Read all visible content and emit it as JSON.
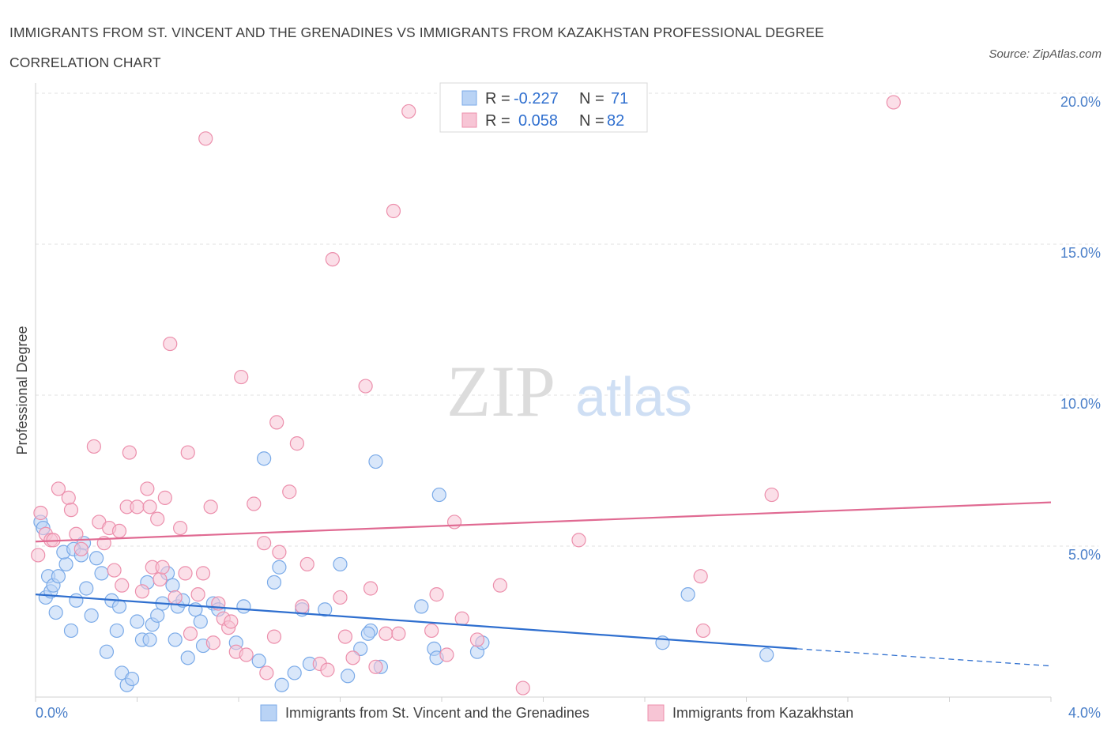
{
  "header": {
    "title": "IMMIGRANTS FROM ST. VINCENT AND THE GRENADINES VS IMMIGRANTS FROM KAZAKHSTAN PROFESSIONAL DEGREE CORRELATION CHART",
    "source": "Source: ZipAtlas.com"
  },
  "watermark": {
    "zip": "ZIP",
    "atlas": "atlas"
  },
  "legend": {
    "r_label": "R =",
    "n_label": "N =",
    "rows": [
      {
        "r": "-0.227",
        "n": "71"
      },
      {
        "r": "0.058",
        "n": "82"
      }
    ]
  },
  "chart_data": {
    "type": "scatter",
    "title": "IMMIGRANTS FROM ST. VINCENT AND THE GRENADINES VS IMMIGRANTS FROM KAZAKHSTAN PROFESSIONAL DEGREE CORRELATION CHART",
    "xlabel": "",
    "ylabel": "Professional Degree",
    "xlim": [
      0,
      4
    ],
    "ylim": [
      0,
      20
    ],
    "x_tick_labels": [
      "0.0%",
      "4.0%"
    ],
    "y_ticks": [
      {
        "value": 5,
        "label": "5.0%"
      },
      {
        "value": 10,
        "label": "10.0%"
      },
      {
        "value": 15,
        "label": "15.0%"
      },
      {
        "value": 20,
        "label": "20.0%"
      }
    ],
    "grid": true,
    "legend_position": "top-center",
    "series": [
      {
        "name": "Immigrants from St. Vincent and the Grenadines",
        "color": "#7aaae8",
        "fill": "#b9d3f5",
        "r": -0.227,
        "n": 71,
        "trend": {
          "x0": 0.0,
          "y0": 3.4,
          "x1": 3.0,
          "y1": 1.6,
          "dash_to_x": 4.0,
          "dash_to_y": 1.03
        },
        "points": [
          [
            0.02,
            5.8
          ],
          [
            0.04,
            3.3
          ],
          [
            0.05,
            4.0
          ],
          [
            0.06,
            3.5
          ],
          [
            0.08,
            2.8
          ],
          [
            0.07,
            3.7
          ],
          [
            0.12,
            4.4
          ],
          [
            0.14,
            2.2
          ],
          [
            0.16,
            3.2
          ],
          [
            0.19,
            5.1
          ],
          [
            0.22,
            2.7
          ],
          [
            0.24,
            4.6
          ],
          [
            0.26,
            4.1
          ],
          [
            0.3,
            3.2
          ],
          [
            0.32,
            2.2
          ],
          [
            0.34,
            0.8
          ],
          [
            0.36,
            0.4
          ],
          [
            0.38,
            0.6
          ],
          [
            0.42,
            1.9
          ],
          [
            0.44,
            3.8
          ],
          [
            0.46,
            2.4
          ],
          [
            0.48,
            2.7
          ],
          [
            0.5,
            3.1
          ],
          [
            0.52,
            4.1
          ],
          [
            0.54,
            3.7
          ],
          [
            0.56,
            3.0
          ],
          [
            0.58,
            3.2
          ],
          [
            0.6,
            1.3
          ],
          [
            0.63,
            2.9
          ],
          [
            0.65,
            2.5
          ],
          [
            0.7,
            3.1
          ],
          [
            0.72,
            2.9
          ],
          [
            0.79,
            1.8
          ],
          [
            0.82,
            3.0
          ],
          [
            0.88,
            1.2
          ],
          [
            0.9,
            7.9
          ],
          [
            0.94,
            3.8
          ],
          [
            0.96,
            4.3
          ],
          [
            0.97,
            0.4
          ],
          [
            1.02,
            0.8
          ],
          [
            1.08,
            1.1
          ],
          [
            1.14,
            2.9
          ],
          [
            1.2,
            4.4
          ],
          [
            1.23,
            0.7
          ],
          [
            1.28,
            1.6
          ],
          [
            1.32,
            2.2
          ],
          [
            1.34,
            7.8
          ],
          [
            1.36,
            1.0
          ],
          [
            1.52,
            3.0
          ],
          [
            1.57,
            1.6
          ],
          [
            1.58,
            1.3
          ],
          [
            1.59,
            6.7
          ],
          [
            1.74,
            1.5
          ],
          [
            1.76,
            1.8
          ],
          [
            2.47,
            1.8
          ],
          [
            2.57,
            3.4
          ],
          [
            2.88,
            1.4
          ],
          [
            0.03,
            5.6
          ],
          [
            0.11,
            4.8
          ],
          [
            0.15,
            4.9
          ],
          [
            0.2,
            3.6
          ],
          [
            0.28,
            1.5
          ],
          [
            0.33,
            3.0
          ],
          [
            0.4,
            2.5
          ],
          [
            0.45,
            1.9
          ],
          [
            0.18,
            4.7
          ],
          [
            0.09,
            4.0
          ],
          [
            0.55,
            1.9
          ],
          [
            0.66,
            1.7
          ],
          [
            1.05,
            2.9
          ],
          [
            1.31,
            2.1
          ]
        ]
      },
      {
        "name": "Immigrants from Kazakhstan",
        "color": "#ec8fac",
        "fill": "#f7c5d5",
        "r": 0.058,
        "n": 82,
        "trend": {
          "x0": 0.0,
          "y0": 5.15,
          "x1": 4.0,
          "y1": 6.45
        },
        "points": [
          [
            0.01,
            4.7
          ],
          [
            0.02,
            6.1
          ],
          [
            0.04,
            5.4
          ],
          [
            0.06,
            5.2
          ],
          [
            0.09,
            6.9
          ],
          [
            0.13,
            6.6
          ],
          [
            0.14,
            6.2
          ],
          [
            0.16,
            5.4
          ],
          [
            0.18,
            4.9
          ],
          [
            0.23,
            8.3
          ],
          [
            0.25,
            5.8
          ],
          [
            0.27,
            5.1
          ],
          [
            0.29,
            5.6
          ],
          [
            0.31,
            4.2
          ],
          [
            0.33,
            5.5
          ],
          [
            0.34,
            3.7
          ],
          [
            0.36,
            6.3
          ],
          [
            0.37,
            8.1
          ],
          [
            0.4,
            6.3
          ],
          [
            0.42,
            3.5
          ],
          [
            0.44,
            6.9
          ],
          [
            0.45,
            6.3
          ],
          [
            0.46,
            4.3
          ],
          [
            0.48,
            5.9
          ],
          [
            0.49,
            3.9
          ],
          [
            0.5,
            4.3
          ],
          [
            0.51,
            6.6
          ],
          [
            0.53,
            11.7
          ],
          [
            0.55,
            3.3
          ],
          [
            0.57,
            5.6
          ],
          [
            0.59,
            4.1
          ],
          [
            0.6,
            8.1
          ],
          [
            0.61,
            2.1
          ],
          [
            0.64,
            3.4
          ],
          [
            0.66,
            4.1
          ],
          [
            0.67,
            18.5
          ],
          [
            0.69,
            6.3
          ],
          [
            0.7,
            1.8
          ],
          [
            0.72,
            3.1
          ],
          [
            0.74,
            2.6
          ],
          [
            0.76,
            2.3
          ],
          [
            0.77,
            2.5
          ],
          [
            0.79,
            1.5
          ],
          [
            0.81,
            10.6
          ],
          [
            0.83,
            1.4
          ],
          [
            0.86,
            6.4
          ],
          [
            0.9,
            5.1
          ],
          [
            0.91,
            0.8
          ],
          [
            0.94,
            2.0
          ],
          [
            0.95,
            9.1
          ],
          [
            1.0,
            6.8
          ],
          [
            1.03,
            8.4
          ],
          [
            1.05,
            3.0
          ],
          [
            1.07,
            4.4
          ],
          [
            1.12,
            1.1
          ],
          [
            1.15,
            0.9
          ],
          [
            1.17,
            14.5
          ],
          [
            1.2,
            3.3
          ],
          [
            1.22,
            2.0
          ],
          [
            1.25,
            1.3
          ],
          [
            1.3,
            10.3
          ],
          [
            1.32,
            3.6
          ],
          [
            1.34,
            1.0
          ],
          [
            1.38,
            2.1
          ],
          [
            1.41,
            16.1
          ],
          [
            1.43,
            2.1
          ],
          [
            1.47,
            19.4
          ],
          [
            1.56,
            2.2
          ],
          [
            1.58,
            3.4
          ],
          [
            1.62,
            1.4
          ],
          [
            1.65,
            5.8
          ],
          [
            1.68,
            2.6
          ],
          [
            1.74,
            1.9
          ],
          [
            1.83,
            3.7
          ],
          [
            1.92,
            0.3
          ],
          [
            2.14,
            5.2
          ],
          [
            2.62,
            4.0
          ],
          [
            2.63,
            2.2
          ],
          [
            2.9,
            6.7
          ],
          [
            3.38,
            19.7
          ],
          [
            0.96,
            4.8
          ],
          [
            0.07,
            5.2
          ]
        ]
      }
    ]
  },
  "colors": {
    "blue_line": "#2f6fcf",
    "pink_line": "#e06a92",
    "grid": "#e2e2e2",
    "axis": "#d0d0d0"
  }
}
